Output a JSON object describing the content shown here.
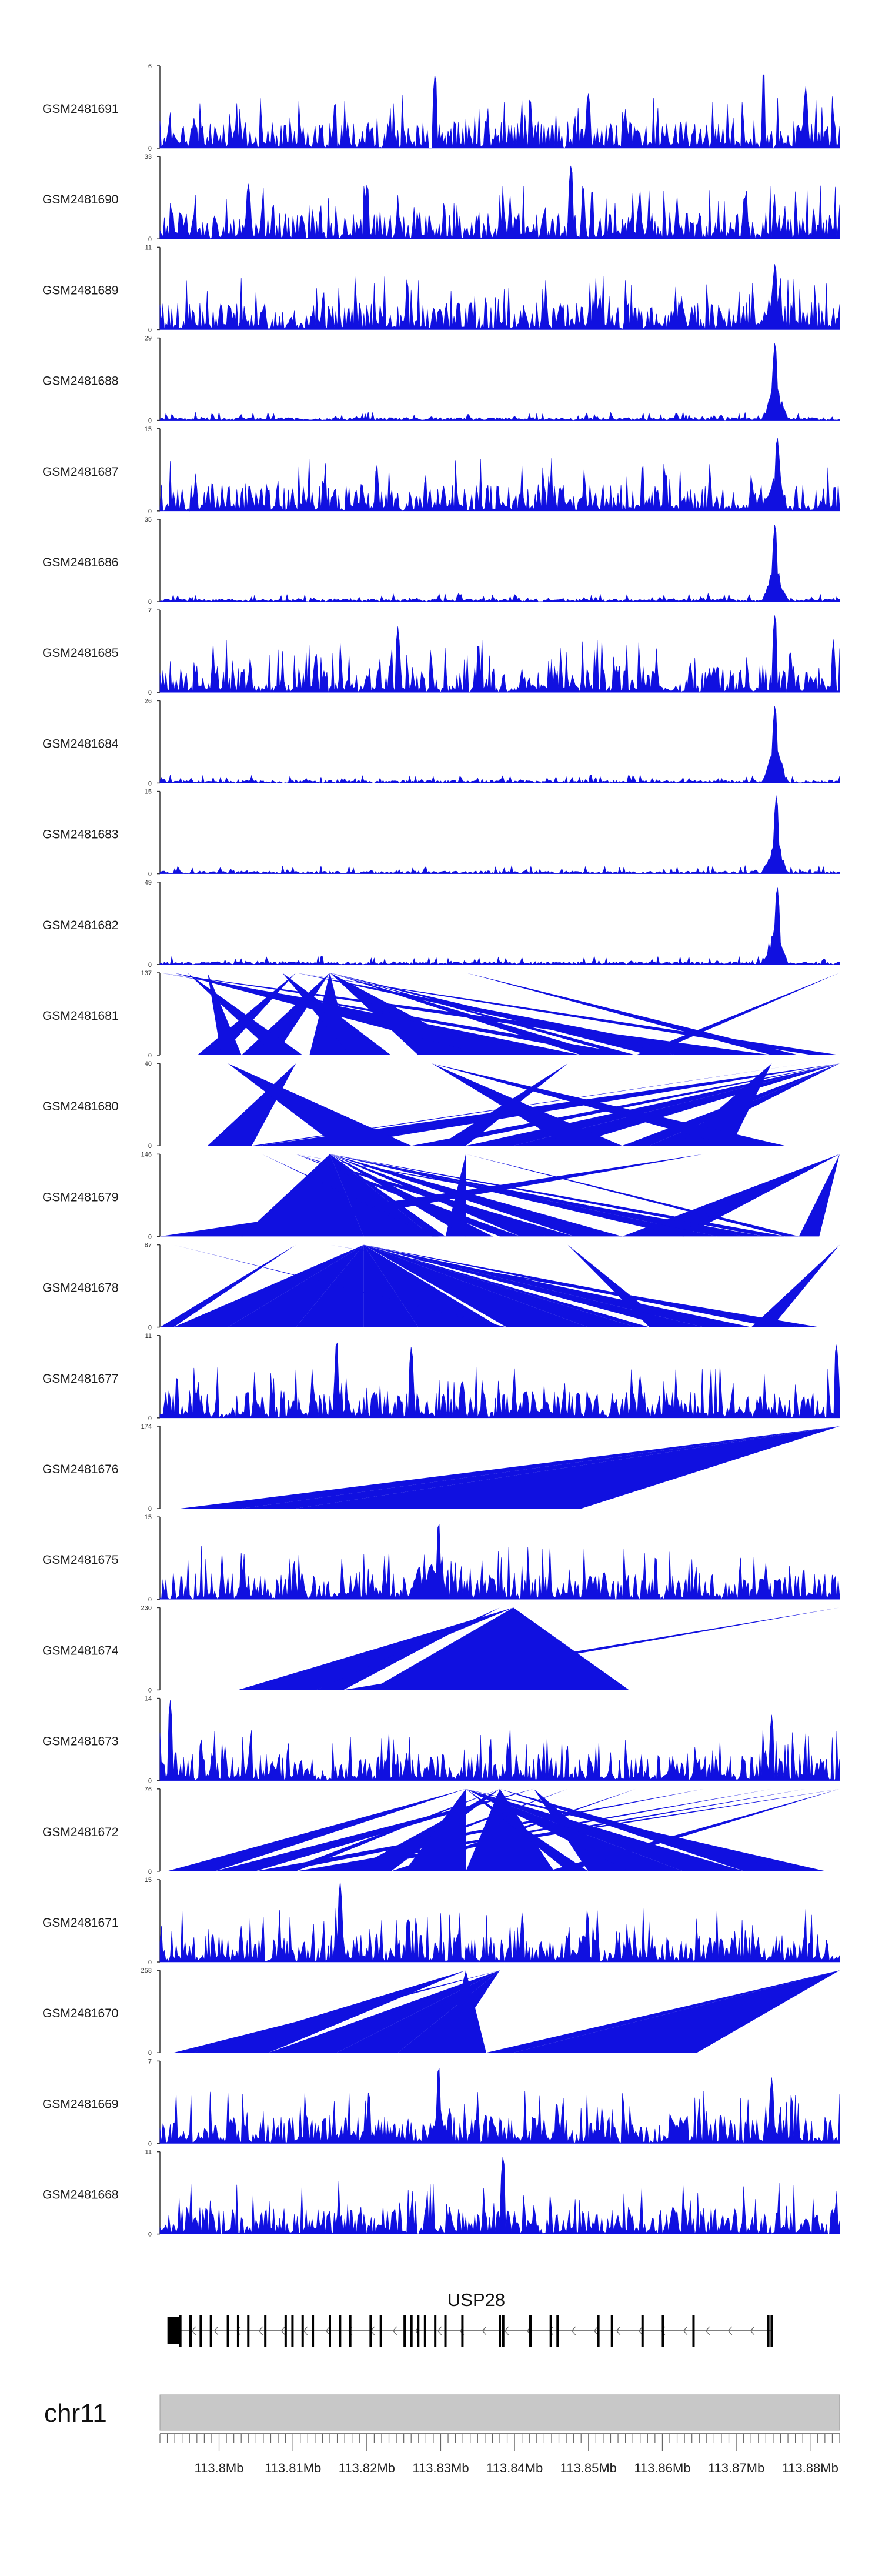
{
  "chart_data": {
    "type": "area",
    "description_title": "",
    "signal_color": "#1010e0",
    "ideogram_color": "#c8c8c8",
    "x_range_bp": [
      113792000,
      113884000
    ],
    "tracks": [
      {
        "name": "GSM2481691",
        "max": 6,
        "min": 0,
        "style": "dense",
        "seed": 11,
        "peaks": [
          [
            0.405,
            0.95
          ],
          [
            0.888,
            1.0
          ],
          [
            0.63,
            0.7
          ],
          [
            0.95,
            0.75
          ]
        ],
        "hot": []
      },
      {
        "name": "GSM2481690",
        "max": 33,
        "min": 0,
        "style": "sparse",
        "seed": 12,
        "peaks": [
          [
            0.13,
            0.7
          ],
          [
            0.305,
            0.7
          ],
          [
            0.605,
            0.95
          ],
          [
            0.86,
            0.55
          ]
        ],
        "n": 26
      },
      {
        "name": "GSM2481689",
        "max": 11,
        "min": 0,
        "style": "dense",
        "seed": 13,
        "peaks": [
          [
            0.905,
            0.85
          ]
        ],
        "hot": [
          0.9
        ]
      },
      {
        "name": "GSM2481688",
        "max": 29,
        "min": 0,
        "style": "flat",
        "seed": 14,
        "peaks": [
          [
            0.905,
            1.0
          ]
        ],
        "hot": [
          0.905
        ]
      },
      {
        "name": "GSM2481687",
        "max": 15,
        "min": 0,
        "style": "dense2",
        "seed": 15,
        "peaks": [
          [
            0.908,
            0.95
          ]
        ],
        "hot": [
          0.905
        ]
      },
      {
        "name": "GSM2481686",
        "max": 35,
        "min": 0,
        "style": "flat",
        "seed": 16,
        "peaks": [
          [
            0.905,
            1.0
          ]
        ],
        "hot": [
          0.905
        ]
      },
      {
        "name": "GSM2481685",
        "max": 7,
        "min": 0,
        "style": "dense",
        "seed": 17,
        "peaks": [
          [
            0.905,
            1.0
          ],
          [
            0.35,
            0.8
          ]
        ],
        "hot": []
      },
      {
        "name": "GSM2481684",
        "max": 26,
        "min": 0,
        "style": "flat",
        "seed": 18,
        "peaks": [
          [
            0.905,
            1.0
          ]
        ],
        "hot": [
          0.905
        ]
      },
      {
        "name": "GSM2481683",
        "max": 15,
        "min": 0,
        "style": "flat2",
        "seed": 19,
        "peaks": [
          [
            0.907,
            1.0
          ]
        ],
        "hot": [
          0.905
        ]
      },
      {
        "name": "GSM2481682",
        "max": 49,
        "min": 0,
        "style": "flat",
        "seed": 20,
        "peaks": [
          [
            0.908,
            1.0
          ]
        ],
        "hot": [
          0.905
        ]
      },
      {
        "name": "GSM2481681",
        "max": 137,
        "min": 0,
        "style": "tri",
        "tri": [
          [
            0.055,
            0.2,
            0.09
          ],
          [
            0.09,
            0.07,
            0.12
          ],
          [
            0.12,
            0.25,
            0.17
          ],
          [
            0.17,
            0.04,
            0.21
          ],
          [
            0.22,
            0.25,
            0.28
          ],
          [
            0.28,
            0.18,
            0.34
          ],
          [
            0.38,
            0.25,
            0.48
          ],
          [
            0.48,
            0.02,
            0.62
          ],
          [
            0.62,
            0.25,
            0.66
          ],
          [
            0.66,
            0.0,
            0.7
          ],
          [
            0.68,
            0.25,
            0.7
          ],
          [
            0.7,
            1.0,
            0.72
          ],
          [
            0.72,
            0.25,
            0.76
          ],
          [
            0.76,
            0.2,
            0.83
          ],
          [
            0.83,
            0.0,
            0.9
          ],
          [
            0.9,
            0.45,
            0.94
          ],
          [
            0.96,
            0.2,
            1.0
          ]
        ]
      },
      {
        "name": "GSM2481680",
        "max": 40,
        "min": 0,
        "style": "tri",
        "tri": [
          [
            0.07,
            0.2,
            0.135
          ],
          [
            0.135,
            0.95,
            0.145
          ],
          [
            0.145,
            1.0,
            0.26
          ],
          [
            0.26,
            0.1,
            0.37
          ],
          [
            0.37,
            1.0,
            0.41
          ],
          [
            0.41,
            0.6,
            0.45
          ],
          [
            0.45,
            1.0,
            0.52
          ],
          [
            0.52,
            1.0,
            0.6
          ],
          [
            0.6,
            0.4,
            0.68
          ],
          [
            0.68,
            1.0,
            0.72
          ],
          [
            0.72,
            1.0,
            0.76
          ],
          [
            0.76,
            0.9,
            0.84
          ],
          [
            0.84,
            0.4,
            0.92
          ]
        ]
      },
      {
        "name": "GSM2481679",
        "max": 146,
        "min": 0,
        "style": "tri",
        "tri": [
          [
            0.0,
            0.8,
            0.12
          ],
          [
            0.12,
            0.25,
            0.3
          ],
          [
            0.3,
            0.25,
            0.4
          ],
          [
            0.4,
            0.15,
            0.41
          ],
          [
            0.4,
            0.25,
            0.42
          ],
          [
            0.42,
            0.45,
            0.45
          ],
          [
            0.45,
            0.25,
            0.49
          ],
          [
            0.5,
            0.2,
            0.53
          ],
          [
            0.53,
            0.25,
            0.57
          ],
          [
            0.57,
            0.2,
            0.61
          ],
          [
            0.61,
            0.25,
            0.68
          ],
          [
            0.68,
            1.0,
            0.77
          ],
          [
            0.77,
            0.25,
            0.82
          ],
          [
            0.82,
            0.25,
            0.86
          ],
          [
            0.86,
            0.2,
            0.89
          ],
          [
            0.89,
            0.25,
            0.92
          ],
          [
            0.92,
            0.45,
            0.94
          ],
          [
            0.94,
            1.0,
            0.97
          ]
        ]
      },
      {
        "name": "GSM2481678",
        "max": 87,
        "min": 0,
        "style": "tri",
        "tri": [
          [
            0.0,
            0.2,
            0.02
          ],
          [
            0.02,
            0.3,
            0.1
          ],
          [
            0.1,
            0.3,
            0.2
          ],
          [
            0.2,
            0.3,
            0.3
          ],
          [
            0.3,
            0.3,
            0.38
          ],
          [
            0.38,
            0.3,
            0.5
          ],
          [
            0.5,
            0.02,
            0.51
          ],
          [
            0.51,
            0.3,
            0.63
          ],
          [
            0.63,
            0.3,
            0.7
          ],
          [
            0.7,
            0.3,
            0.72
          ],
          [
            0.72,
            0.6,
            0.75
          ],
          [
            0.75,
            0.3,
            0.8
          ],
          [
            0.8,
            0.3,
            0.87
          ],
          [
            0.87,
            1.0,
            0.9
          ],
          [
            0.9,
            0.3,
            0.94
          ],
          [
            0.94,
            0.25,
            0.97
          ]
        ]
      },
      {
        "name": "GSM2481677",
        "max": 11,
        "min": 0,
        "style": "dense",
        "seed": 21,
        "peaks": [
          [
            0.26,
            1.0
          ],
          [
            0.37,
            0.9
          ],
          [
            0.995,
            0.95
          ]
        ],
        "hot": []
      },
      {
        "name": "GSM2481676",
        "max": 174,
        "min": 0,
        "style": "tri",
        "tri": [
          [
            0.03,
            1.0,
            0.12
          ],
          [
            0.12,
            1.0,
            0.2
          ],
          [
            0.2,
            1.0,
            0.62
          ]
        ]
      },
      {
        "name": "GSM2481675",
        "max": 15,
        "min": 0,
        "style": "dense3",
        "seed": 22,
        "peaks": [
          [
            0.41,
            1.0
          ],
          [
            0.38,
            0.4
          ]
        ],
        "hot": [
          0.4
        ]
      },
      {
        "name": "GSM2481674",
        "max": 230,
        "min": 0,
        "style": "tri",
        "tri": [
          [
            0.115,
            0.52,
            0.23
          ],
          [
            0.23,
            0.5,
            0.27
          ],
          [
            0.27,
            1.0,
            0.31
          ],
          [
            0.31,
            0.52,
            0.69
          ]
        ]
      },
      {
        "name": "GSM2481673",
        "max": 14,
        "min": 0,
        "style": "dense4",
        "seed": 23,
        "peaks": [
          [
            0.015,
            1.0
          ],
          [
            0.9,
            0.8
          ]
        ],
        "hot": []
      },
      {
        "name": "GSM2481672",
        "max": 76,
        "min": 0,
        "style": "tri",
        "tri": [
          [
            0.01,
            0.45,
            0.08
          ],
          [
            0.08,
            0.55,
            0.14
          ],
          [
            0.14,
            0.8,
            0.18
          ],
          [
            0.18,
            0.5,
            0.2
          ],
          [
            0.2,
            0.9,
            0.23
          ],
          [
            0.21,
            1.0,
            0.24
          ],
          [
            0.23,
            0.95,
            0.26
          ],
          [
            0.26,
            0.6,
            0.28
          ],
          [
            0.28,
            0.5,
            0.34
          ],
          [
            0.34,
            0.7,
            0.36
          ],
          [
            0.36,
            0.45,
            0.45
          ],
          [
            0.45,
            0.5,
            0.58
          ],
          [
            0.57,
            1.0,
            0.6
          ],
          [
            0.6,
            0.45,
            0.63
          ],
          [
            0.63,
            0.55,
            0.69
          ],
          [
            0.69,
            0.45,
            0.77
          ],
          [
            0.77,
            0.45,
            0.86
          ],
          [
            0.86,
            0.5,
            0.93
          ],
          [
            0.93,
            0.45,
            0.98
          ]
        ]
      },
      {
        "name": "GSM2481671",
        "max": 15,
        "min": 0,
        "style": "dense5",
        "seed": 24,
        "peaks": [
          [
            0.265,
            1.0
          ]
        ],
        "hot": []
      },
      {
        "name": "GSM2481670",
        "max": 258,
        "min": 0,
        "style": "tri",
        "tri": [
          [
            0.02,
            0.5,
            0.05
          ],
          [
            0.05,
            0.45,
            0.16
          ],
          [
            0.16,
            0.5,
            0.26
          ],
          [
            0.26,
            0.5,
            0.35
          ],
          [
            0.35,
            0.5,
            0.42
          ],
          [
            0.42,
            0.45,
            0.48
          ],
          [
            0.48,
            1.0,
            0.52
          ],
          [
            0.52,
            1.0,
            0.79
          ]
        ]
      },
      {
        "name": "GSM2481669",
        "max": 7,
        "min": 0,
        "style": "dense6",
        "seed": 25,
        "peaks": [
          [
            0.41,
            1.0
          ],
          [
            0.9,
            0.8
          ]
        ],
        "hot": [
          0.41
        ]
      },
      {
        "name": "GSM2481668",
        "max": 11,
        "min": 0,
        "style": "dense7",
        "seed": 26,
        "peaks": [
          [
            0.505,
            1.0
          ]
        ],
        "hot": []
      }
    ],
    "gene": {
      "name": "USP28",
      "strand": "-",
      "exons_frac": [
        0.03,
        0.045,
        0.06,
        0.075,
        0.1,
        0.115,
        0.13,
        0.155,
        0.185,
        0.195,
        0.21,
        0.225,
        0.25,
        0.265,
        0.28,
        0.31,
        0.325,
        0.36,
        0.37,
        0.38,
        0.39,
        0.405,
        0.42,
        0.445,
        0.5,
        0.505,
        0.545,
        0.575,
        0.585,
        0.645,
        0.665,
        0.71,
        0.74,
        0.785,
        0.895,
        0.9
      ]
    },
    "chromosome": "chr11",
    "ticks": [
      "113.8Mb",
      "113.81Mb",
      "113.82Mb",
      "113.83Mb",
      "113.84Mb",
      "113.85Mb",
      "113.86Mb",
      "113.87Mb",
      "113.88Mb"
    ],
    "tick_values_mb": [
      113.8,
      113.81,
      113.82,
      113.83,
      113.84,
      113.85,
      113.86,
      113.87,
      113.88
    ],
    "xlabel": "",
    "ylabel": ""
  }
}
